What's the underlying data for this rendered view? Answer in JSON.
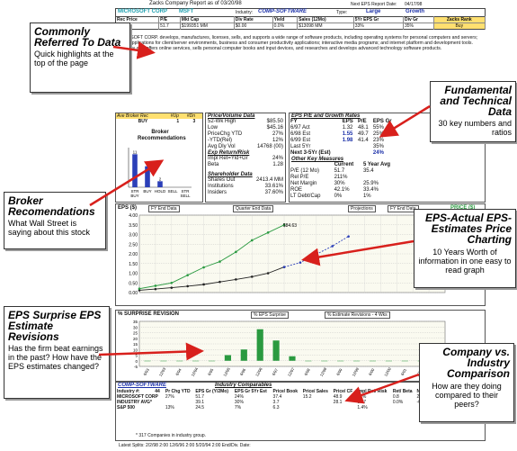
{
  "report": {
    "title": "Zacks Company Report as of 03/20/98",
    "next_eps_label": "Next EPS Report Date:",
    "next_eps_date": "04/17/98",
    "company": "MICROSOFT CORP",
    "ticker": "MSFT",
    "industry_label": "Industry:",
    "industry": "COMP-SOFTWARE",
    "type_label": "Type:",
    "type_value": "Large",
    "style_value": "Growth"
  },
  "quick_table": {
    "headers": [
      "Rec Price",
      "P/E",
      "Mkt Cap",
      "Div Rate",
      "Yield",
      "Sales (12Mo)",
      "5Yr EPS Gr",
      "Div Gr",
      "Zacks Rank"
    ],
    "values": [
      "$81.89",
      "51.7",
      "$199351 MM",
      "$0.00",
      "0.0%",
      "$13098 MM",
      "33%",
      "35%",
      "Buy"
    ]
  },
  "description": "MICROSOFT CORP. develops, manufactures, licenses, sells, and supports a wide range of software products, including operating systems for personal computers and servers; server applications for client/server environments, business and consumer productivity applications; interactive media programs; and internet platform and development tools. Company also offers online services, sells personal computer books and input devices, and researches and develops advanced technology software products.",
  "broker": {
    "headers": [
      "Ave Broker Rec",
      "#Up",
      "#Dn"
    ],
    "values": [
      "BUY",
      "1",
      "3"
    ],
    "title": "Broker Recommendations",
    "bars": [
      {
        "label": "STR BUY",
        "value": 11
      },
      {
        "label": "BUY",
        "value": 7
      },
      {
        "label": "HOLD",
        "value": 2
      },
      {
        "label": "SELL",
        "value": 0
      },
      {
        "label": "STR SELL",
        "value": 0
      }
    ],
    "ymax": 12
  },
  "price_volume": {
    "title": "Price/Volume Data",
    "rows": [
      {
        "k": "52-Wk High",
        "v": "$85.50"
      },
      {
        "k": "Low",
        "v": "$45.16"
      },
      {
        "k": "PriceChg YTD",
        "v": "27%"
      },
      {
        "k": "-YTD(Rel)",
        "v": "12%"
      },
      {
        "k": "Avg Dly Vol",
        "v": "14768 (00)"
      }
    ],
    "exp_title": "Exp Return/Risk",
    "exp_rows": [
      {
        "k": "Impl Ret=Yld+Gr",
        "v": "24%"
      },
      {
        "k": "Beta",
        "v": "1.28"
      }
    ],
    "sh_title": "Shareholder Data",
    "sh_rows": [
      {
        "k": "Shares Out",
        "v": "2413.4 MM"
      },
      {
        "k": "Institutions",
        "v": "33.61%"
      },
      {
        "k": "Insiders",
        "v": "37.60%"
      }
    ]
  },
  "eps_growth": {
    "title": "EPS P/E and Growth Rates",
    "headers": [
      "FY",
      "EPS",
      "P/E",
      "EPS Gr"
    ],
    "rows": [
      {
        "fy": "6/97 Act",
        "eps": "1.32",
        "pe": "48.1",
        "gr": "55%"
      },
      {
        "fy": "6/98 Est",
        "eps": "1.55",
        "pe": "49.7",
        "gr": "25%"
      },
      {
        "fy": "6/99 Est",
        "eps": "1.98",
        "pe": "41.4",
        "gr": "23%"
      }
    ],
    "last5": {
      "k": "Last 5Yr",
      "v": "35%"
    },
    "next5": {
      "k": "Next 3-5Yr (Est)",
      "v": "24%"
    },
    "other_title": "Other Key Measures",
    "other_headers": [
      "",
      "Current",
      "5 Year Avg"
    ],
    "other_rows": [
      {
        "k": "P/E (12 Mo)",
        "c": "51.7",
        "a": "35.4"
      },
      {
        "k": "Rel P/E",
        "c": "211%",
        "a": ""
      },
      {
        "k": "Net Margin",
        "c": "30%",
        "a": "25.9%"
      },
      {
        "k": "ROE",
        "c": "42.1%",
        "a": "33.4%"
      },
      {
        "k": "LT Debt/Cap",
        "c": "0%",
        "a": "1%"
      }
    ]
  },
  "eps_chart": {
    "label": "EPS ($)",
    "btn_fy": "FY End Data",
    "btn_q": "Quarter End Data",
    "btn_proj": "Projections",
    "btn_fy2": "FY End Data",
    "price_label": "PRICE ($)",
    "price_annot": "$84.63",
    "y_ticks": [
      "4.00",
      "3.50",
      "3.00",
      "2.50",
      "2.00",
      "1.50",
      "1.00",
      "0.50",
      "0.00"
    ]
  },
  "chart_data": [
    {
      "type": "bar",
      "title": "Broker Recommendations",
      "categories": [
        "STR BUY",
        "BUY",
        "HOLD",
        "SELL",
        "STR SELL"
      ],
      "values": [
        11,
        7,
        2,
        0,
        0
      ],
      "ylim": [
        0,
        12
      ]
    },
    {
      "type": "line",
      "title": "",
      "xlabel": "",
      "ylabel": "EPS ($)",
      "ylim": [
        0,
        4
      ],
      "series": [
        {
          "values": [
            0.12,
            0.18,
            0.25,
            0.33,
            0.42,
            0.55,
            0.68,
            0.82,
            1.0,
            1.32
          ]
        },
        {
          "values": [
            0.2,
            0.35,
            0.5,
            0.9,
            1.3,
            1.6,
            2.1,
            2.7,
            3.1,
            3.5
          ]
        },
        {
          "values": [
            1.32,
            1.55,
            1.98,
            2.4,
            2.9
          ]
        }
      ]
    },
    {
      "type": "bar",
      "title": "% SURPRISE REVISION",
      "categories": [
        "6/93",
        "12/93",
        "6/94",
        "12/94",
        "6/95",
        "12/95",
        "6/96",
        "12/96",
        "6/97",
        "12/97",
        "6/98",
        "12/98",
        "6/99",
        "12/99",
        "6/00",
        "12/00",
        "6/01",
        "12/01",
        "6/02"
      ],
      "values": [
        0,
        0,
        0,
        0,
        0,
        5,
        10,
        28,
        18,
        4,
        0,
        0,
        0,
        0,
        0,
        0,
        0,
        0,
        0
      ],
      "ylim": [
        -5,
        35
      ]
    }
  ],
  "surprise": {
    "label": "% SURPRISE REVISION",
    "btn1": "% EPS Surprise",
    "btn2": "% Estimate Revisions - 4 Wks",
    "y_ticks": [
      "35",
      "30",
      "25",
      "20",
      "15",
      "10",
      "5",
      "0",
      "-5"
    ],
    "x_ticks": [
      "6/93",
      "12/93",
      "6/94",
      "12/94",
      "6/95",
      "12/95",
      "6/96",
      "12/96",
      "6/97",
      "12/97",
      "6/98",
      "12/98",
      "6/99",
      "12/99",
      "6/00",
      "12/00",
      "6/01",
      "12/01",
      "6/02"
    ]
  },
  "industry": {
    "title_left": "COMP-SOFTWARE",
    "title_right": "Industry Comparables",
    "header1": [
      "Industry #:",
      "44",
      "Pr Chg YTD",
      "EPS Gr (Y/2Mo)",
      "EPS Gr 5Yr Est",
      "Price/ Book",
      "Price/ Sales",
      "Price/ CF",
      "Impl Ret/ Risk",
      "Ret/ Beta",
      "Net Margin",
      "ROE",
      "Debt/ Cap"
    ],
    "rows": [
      [
        "MICROSOFT CORP",
        "27%",
        "51.7",
        "24%",
        "37.4",
        "15.2",
        "48.9",
        "24%",
        "0.8",
        "29.7%",
        "42%",
        "0%"
      ],
      [
        "INDUSTRY AVG*",
        "",
        "39.1",
        "30%",
        "3.7",
        "",
        "28.1",
        "0.77",
        "0.0%",
        "-0.3%",
        "8%",
        ""
      ],
      [
        "S&P 500",
        "13%",
        "24.5",
        "7%",
        "6.3",
        "",
        "",
        "1.4%",
        "",
        "",
        "23%",
        ""
      ]
    ],
    "footnote": "* 317 Companies in industry group.",
    "splits": "Latest Splits: 2/2/98 2:00  12/6/96 2:00  5/20/94 2:00  End/Div. Date:"
  },
  "callouts": {
    "c1_title": "Commonly Referred To Data",
    "c1_sub": "Quick highlights at the top of the page",
    "c2_title": "Fundamental and Technical Data",
    "c2_sub": "30 key numbers and ratios",
    "c3_title": "Broker Recomendations",
    "c3_sub": "What Wall Street is saying about this stock",
    "c4_title": "EPS-Actual EPS-Estimates Price Charting",
    "c4_sub": "10 Years Worth of information in one easy to read graph",
    "c5_title": "EPS Surprise EPS Estimate Revisions",
    "c5_sub": "Has the firm beat earnings in the past? How have the EPS estimates changed?",
    "c6_title": "Company vs. Industry Comparison",
    "c6_sub": "How are they doing compared to their peers?"
  }
}
